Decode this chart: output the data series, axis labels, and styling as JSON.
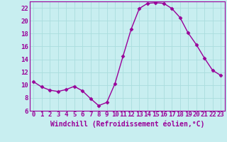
{
  "x": [
    0,
    1,
    2,
    3,
    4,
    5,
    6,
    7,
    8,
    9,
    10,
    11,
    12,
    13,
    14,
    15,
    16,
    17,
    18,
    19,
    20,
    21,
    22,
    23
  ],
  "y": [
    10.5,
    9.7,
    9.2,
    9.0,
    9.3,
    9.8,
    9.1,
    7.9,
    6.8,
    7.3,
    10.2,
    14.5,
    18.7,
    21.9,
    22.7,
    22.8,
    22.7,
    21.9,
    20.5,
    18.1,
    16.3,
    14.2,
    12.3,
    11.5
  ],
  "xlabel": "Windchill (Refroidissement éolien,°C)",
  "xlim": [
    -0.5,
    23.5
  ],
  "ylim": [
    6,
    23
  ],
  "yticks": [
    6,
    8,
    10,
    12,
    14,
    16,
    18,
    20,
    22
  ],
  "xticks": [
    0,
    1,
    2,
    3,
    4,
    5,
    6,
    7,
    8,
    9,
    10,
    11,
    12,
    13,
    14,
    15,
    16,
    17,
    18,
    19,
    20,
    21,
    22,
    23
  ],
  "line_color": "#990099",
  "marker": "D",
  "marker_size": 2.5,
  "bg_color": "#c8eef0",
  "grid_color": "#aadddd",
  "xlabel_fontsize": 7,
  "tick_fontsize": 6.5,
  "line_width": 1.0
}
